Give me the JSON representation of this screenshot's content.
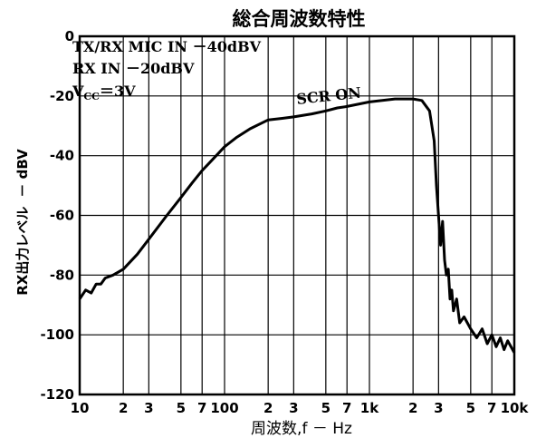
{
  "chart_data": {
    "type": "line",
    "title": "総合周波数特性",
    "xlabel": "周波数,f － Hz",
    "ylabel_main": "RX出力レベル",
    "ylabel_unit": "－ dBV",
    "xscale": "log",
    "xlim": [
      10,
      10000
    ],
    "ylim": [
      -120,
      0
    ],
    "grid": true,
    "y_ticks": [
      {
        "value": 0,
        "label": "0"
      },
      {
        "value": -20,
        "label": "-20"
      },
      {
        "value": -40,
        "label": "-40"
      },
      {
        "value": -60,
        "label": "-60"
      },
      {
        "value": -80,
        "label": "-80"
      },
      {
        "value": -100,
        "label": "-100"
      },
      {
        "value": -120,
        "label": "-120"
      }
    ],
    "x_ticks": [
      {
        "value": 10,
        "label": "10"
      },
      {
        "value": 20,
        "label": "2"
      },
      {
        "value": 30,
        "label": "3"
      },
      {
        "value": 50,
        "label": "5"
      },
      {
        "value": 70,
        "label": "7"
      },
      {
        "value": 100,
        "label": "100"
      },
      {
        "value": 200,
        "label": "2"
      },
      {
        "value": 300,
        "label": "3"
      },
      {
        "value": 500,
        "label": "5"
      },
      {
        "value": 700,
        "label": "7"
      },
      {
        "value": 1000,
        "label": "1k"
      },
      {
        "value": 2000,
        "label": "2"
      },
      {
        "value": 3000,
        "label": "3"
      },
      {
        "value": 5000,
        "label": "5"
      },
      {
        "value": 7000,
        "label": "7"
      },
      {
        "value": 10000,
        "label": "10k"
      }
    ],
    "conditions": {
      "line1": "TX/RX MIC IN －40dBV",
      "line2": "RX IN －20dBV",
      "vcc_prefix": "V",
      "vcc_sub": "CC",
      "vcc_suffix": "＝3V"
    },
    "annotation": "SCR ON",
    "series": [
      {
        "points": [
          [
            10,
            -88
          ],
          [
            11,
            -85
          ],
          [
            12,
            -86
          ],
          [
            13,
            -83
          ],
          [
            14,
            -83
          ],
          [
            15,
            -81
          ],
          [
            17,
            -80
          ],
          [
            20,
            -78
          ],
          [
            25,
            -73
          ],
          [
            30,
            -68
          ],
          [
            40,
            -60
          ],
          [
            50,
            -54
          ],
          [
            60,
            -49
          ],
          [
            70,
            -45
          ],
          [
            80,
            -42
          ],
          [
            100,
            -37
          ],
          [
            120,
            -34
          ],
          [
            150,
            -31
          ],
          [
            200,
            -28
          ],
          [
            250,
            -27.5
          ],
          [
            300,
            -27
          ],
          [
            400,
            -26
          ],
          [
            500,
            -25
          ],
          [
            600,
            -24
          ],
          [
            700,
            -23.5
          ],
          [
            1000,
            -22
          ],
          [
            1500,
            -21
          ],
          [
            2000,
            -21
          ],
          [
            2300,
            -21.5
          ],
          [
            2600,
            -25
          ],
          [
            2800,
            -35
          ],
          [
            2900,
            -50
          ],
          [
            3000,
            -60
          ],
          [
            3100,
            -70
          ],
          [
            3200,
            -62
          ],
          [
            3300,
            -75
          ],
          [
            3400,
            -80
          ],
          [
            3500,
            -78
          ],
          [
            3600,
            -88
          ],
          [
            3700,
            -85
          ],
          [
            3800,
            -92
          ],
          [
            4000,
            -88
          ],
          [
            4200,
            -96
          ],
          [
            4500,
            -94
          ],
          [
            5000,
            -98
          ],
          [
            5500,
            -101
          ],
          [
            6000,
            -98
          ],
          [
            6500,
            -103
          ],
          [
            7000,
            -100
          ],
          [
            7500,
            -104
          ],
          [
            8000,
            -101
          ],
          [
            8500,
            -105
          ],
          [
            9000,
            -102
          ],
          [
            10000,
            -106
          ]
        ]
      }
    ]
  }
}
